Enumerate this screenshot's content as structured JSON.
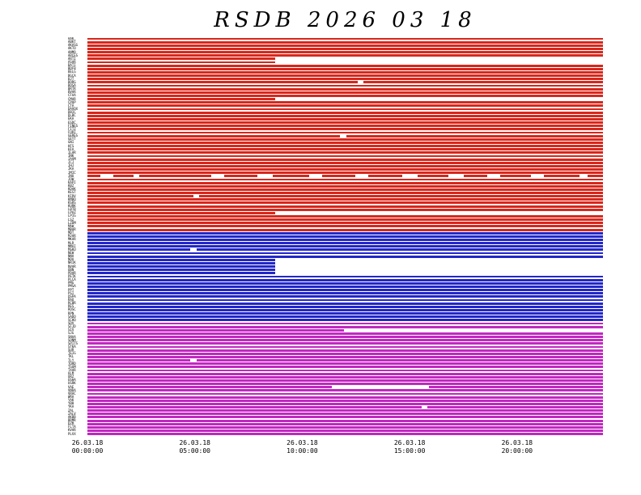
{
  "title": "RSDB 2026 03 18",
  "chart_data": {
    "type": "bar",
    "subtype": "data-availability-timeline",
    "title": "RSDB 2026 03 18",
    "xlabel": "",
    "ylabel": "",
    "x_axis": {
      "range_hours": 24,
      "ticks": [
        {
          "date": "26.03.18",
          "time": "00:00:00",
          "position": 0.0
        },
        {
          "date": "26.03.18",
          "time": "05:00:00",
          "position": 0.20833
        },
        {
          "date": "26.03.18",
          "time": "10:00:00",
          "position": 0.41667
        },
        {
          "date": "26.03.18",
          "time": "15:00:00",
          "position": 0.625
        },
        {
          "date": "26.03.18",
          "time": "20:00:00",
          "position": 0.83333
        }
      ]
    },
    "legend": "none",
    "grid": false,
    "groups": [
      {
        "name": "group-red",
        "color": "#d8271c",
        "row_count": 58,
        "default_segments": [
          [
            0,
            1
          ]
        ],
        "overrides": {
          "6": [
            [
              0,
              0.364
            ]
          ],
          "7": [
            [
              0,
              0.364
            ]
          ],
          "13": [
            [
              0,
              0.525
            ],
            [
              0.535,
              1
            ]
          ],
          "18": [
            [
              0,
              0.364
            ]
          ],
          "29": [
            [
              0,
              0.49
            ],
            [
              0.502,
              1
            ]
          ],
          "41": [
            [
              0.0,
              0.025
            ],
            [
              0.05,
              0.09
            ],
            [
              0.1,
              0.24
            ],
            [
              0.265,
              0.33
            ],
            [
              0.36,
              0.43
            ],
            [
              0.455,
              0.52
            ],
            [
              0.545,
              0.61
            ],
            [
              0.64,
              0.7
            ],
            [
              0.73,
              0.775
            ],
            [
              0.8,
              0.86
            ],
            [
              0.885,
              0.955
            ],
            [
              0.97,
              1.0
            ]
          ],
          "47": [
            [
              0,
              0.205
            ],
            [
              0.216,
              1
            ]
          ],
          "52": [
            [
              0,
              0.364
            ]
          ]
        },
        "labels": [
          "AAK",
          "ABKT",
          "AKASG",
          "AKTO",
          "ANMO",
          "ARCES",
          "ARTI",
          "ASAR",
          "BATI",
          "BDFB",
          "BELG",
          "BGCA",
          "BJT",
          "BORG",
          "BOSA",
          "BRTR",
          "BVAR",
          "CFAA",
          "CMAR",
          "CPUP",
          "CTA",
          "DAVOX",
          "DBIC",
          "DLBC",
          "EKA",
          "ESDC",
          "FINES",
          "FITZ",
          "FURI",
          "GERES",
          "GEYT",
          "GNI",
          "HFS",
          "HIA",
          "ILAR",
          "INK",
          "JAVM",
          "JCJ",
          "JHJ",
          "JKA",
          "JMIC",
          "JNU",
          "JOW",
          "KAPI",
          "KBZ",
          "KDAK",
          "KEST",
          "KIRV",
          "KMBO",
          "KSRS",
          "KURK",
          "LBTB",
          "LPAZ",
          "LPIG",
          "LSZ",
          "LZDM",
          "MAW",
          "MBAR"
        ]
      },
      {
        "name": "group-blue",
        "color": "#2327c8",
        "row_count": 27,
        "default_segments": [
          [
            0,
            1
          ]
        ],
        "overrides": {
          "5": [
            [
              0,
              0.2
            ],
            [
              0.212,
              1
            ]
          ],
          "8": [
            [
              0,
              0.364
            ]
          ],
          "9": [
            [
              0,
              0.364
            ]
          ],
          "10": [
            [
              0,
              0.364
            ]
          ],
          "11": [
            [
              0,
              0.364
            ]
          ],
          "12": [
            [
              0,
              0.364
            ]
          ]
        },
        "labels": [
          "MDT",
          "MJAR",
          "MKAR",
          "MLR",
          "MMAI",
          "MSKU",
          "NEW",
          "NNA",
          "NOA",
          "NRIK",
          "NVAR",
          "OBN",
          "PDAR",
          "PETK",
          "PLCA",
          "PMG",
          "PMSA",
          "PPT",
          "PSI",
          "QSPA",
          "RAO",
          "RCBR",
          "RES",
          "ROSC",
          "RPN",
          "SADO",
          "SCHQ"
        ]
      },
      {
        "name": "group-magenta",
        "color": "#c128c1",
        "row_count": 34,
        "default_segments": [
          [
            0,
            1
          ]
        ],
        "overrides": {
          "2": [
            [
              0,
              0.497
            ]
          ],
          "11": [
            [
              0,
              0.2
            ],
            [
              0.212,
              1
            ]
          ],
          "19": [
            [
              0,
              0.474
            ],
            [
              0.662,
              1
            ]
          ],
          "25": [
            [
              0,
              0.648
            ],
            [
              0.66,
              1
            ]
          ]
        },
        "labels": [
          "SDV",
          "SFJD",
          "SIV",
          "SJG",
          "SNAA",
          "SONM",
          "SPITS",
          "STKA",
          "SUR",
          "TEIG",
          "TKL",
          "TLY",
          "TORD",
          "TSUM",
          "TXAR",
          "ULM",
          "URZ",
          "USHA",
          "USRK",
          "VAE",
          "VNDA",
          "VRAC",
          "WRA",
          "YAK",
          "YBH",
          "YKA",
          "ZAL",
          "ZALV",
          "AKBB",
          "BRMR",
          "DZM",
          "FLTA",
          "KVAR",
          "PLVX"
        ]
      }
    ]
  }
}
